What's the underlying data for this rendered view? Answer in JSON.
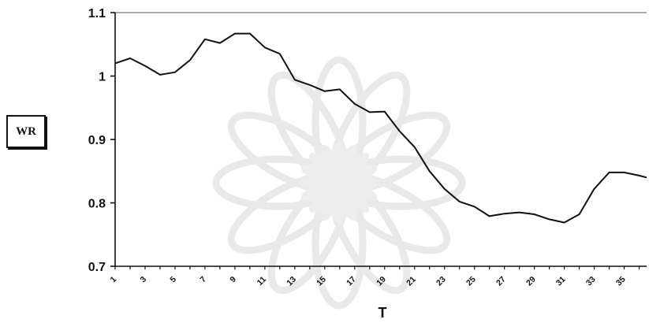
{
  "chart_data": {
    "type": "line",
    "ylabel": "WR",
    "xlabel": "T",
    "ylim": [
      0.7,
      1.1
    ],
    "yticks": [
      0.7,
      0.8,
      0.9,
      1,
      1.1
    ],
    "ytick_labels": [
      "0.7",
      "0.8",
      "0.9",
      "1",
      "1.1"
    ],
    "xlim": [
      1,
      36.5
    ],
    "xticks": [
      1,
      3,
      5,
      7,
      9,
      11,
      13,
      15,
      17,
      19,
      21,
      23,
      25,
      27,
      29,
      31,
      33,
      35
    ],
    "xtick_labels": [
      "1",
      "3",
      "5",
      "7",
      "9",
      "11",
      "13",
      "15",
      "17",
      "19",
      "21",
      "23",
      "25",
      "27",
      "29",
      "31",
      "33",
      "35"
    ],
    "grid": false,
    "legend": "none",
    "line_color": "#111111",
    "series": [
      {
        "x": [
          1,
          2,
          3,
          4,
          5,
          6,
          7,
          8,
          9,
          10,
          11,
          12,
          13,
          14,
          15,
          16,
          17,
          18,
          19,
          20,
          21,
          22,
          23,
          24,
          25,
          26,
          27,
          28,
          29,
          30,
          31,
          32,
          33,
          34,
          35,
          36,
          36.5
        ],
        "values": [
          1.02,
          1.028,
          1.016,
          1.002,
          1.006,
          1.025,
          1.058,
          1.052,
          1.067,
          1.067,
          1.045,
          1.035,
          0.994,
          0.986,
          0.976,
          0.979,
          0.956,
          0.943,
          0.944,
          0.913,
          0.888,
          0.85,
          0.822,
          0.802,
          0.794,
          0.779,
          0.783,
          0.785,
          0.782,
          0.774,
          0.769,
          0.782,
          0.822,
          0.848,
          0.848,
          0.843,
          0.84
        ]
      }
    ]
  }
}
